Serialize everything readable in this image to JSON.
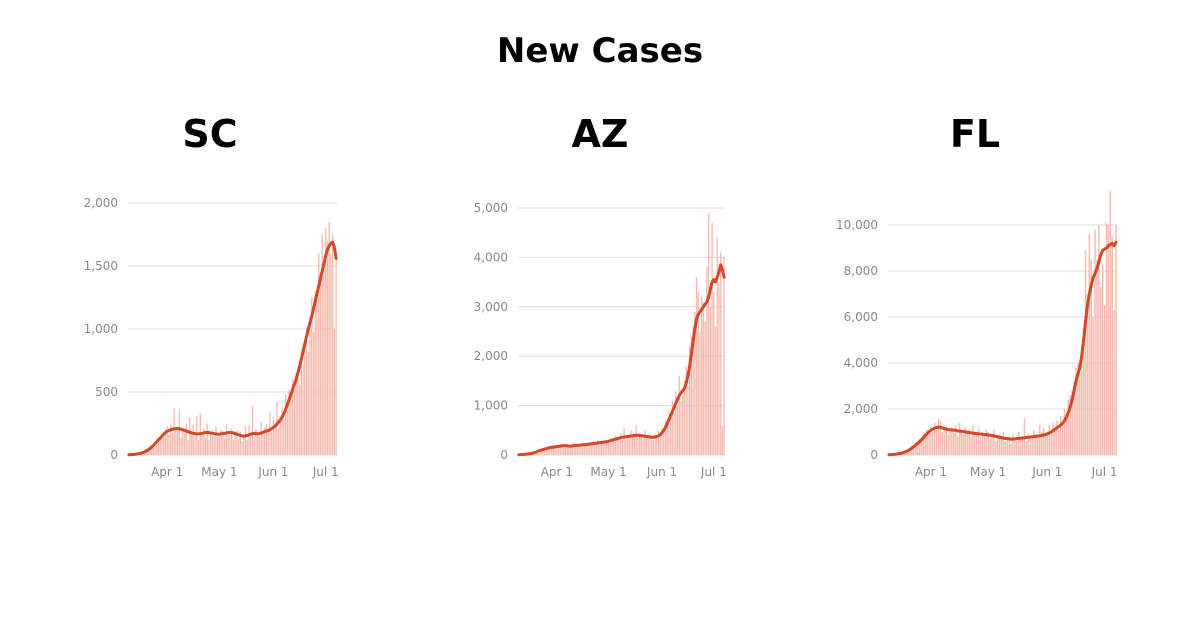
{
  "title": "New Cases",
  "chart_data": [
    {
      "type": "combo",
      "title": "SC",
      "categories": [
        null,
        null,
        null,
        null,
        null,
        null,
        null,
        null,
        null,
        null,
        null,
        null,
        null,
        null,
        null,
        null,
        null,
        null,
        null,
        null,
        null,
        null,
        "Apr 1",
        null,
        null,
        null,
        null,
        null,
        null,
        null,
        null,
        null,
        null,
        null,
        null,
        null,
        null,
        null,
        null,
        null,
        null,
        null,
        null,
        null,
        null,
        null,
        null,
        null,
        null,
        null,
        null,
        null,
        "May 1",
        null,
        null,
        null,
        null,
        null,
        null,
        null,
        null,
        null,
        null,
        null,
        null,
        null,
        null,
        null,
        null,
        null,
        null,
        null,
        null,
        null,
        null,
        null,
        null,
        null,
        null,
        null,
        null,
        null,
        null,
        "Jun 1",
        null,
        null,
        null,
        null,
        null,
        null,
        null,
        null,
        null,
        null,
        null,
        null,
        null,
        null,
        null,
        null,
        null,
        null,
        null,
        null,
        null,
        null,
        null,
        null,
        null,
        null,
        null,
        null,
        null,
        "Jul 1",
        null,
        null,
        null,
        null,
        null,
        null
      ],
      "values": [
        0,
        5,
        2,
        8,
        3,
        10,
        15,
        12,
        30,
        20,
        40,
        30,
        60,
        55,
        90,
        80,
        130,
        100,
        150,
        170,
        140,
        210,
        230,
        160,
        250,
        180,
        370,
        200,
        220,
        360,
        140,
        210,
        190,
        250,
        120,
        300,
        160,
        240,
        150,
        310,
        120,
        330,
        180,
        210,
        140,
        250,
        120,
        180,
        200,
        150,
        230,
        140,
        150,
        200,
        190,
        140,
        240,
        180,
        160,
        210,
        120,
        170,
        200,
        130,
        180,
        110,
        160,
        230,
        120,
        240,
        150,
        390,
        140,
        210,
        180,
        150,
        260,
        170,
        220,
        250,
        200,
        340,
        180,
        300,
        250,
        420,
        210,
        310,
        380,
        290,
        480,
        350,
        520,
        470,
        600,
        520,
        650,
        700,
        560,
        820,
        720,
        900,
        1000,
        820,
        1100,
        1250,
        980,
        1300,
        1250,
        1600,
        1450,
        1750,
        1500,
        1800,
        1700,
        1850,
        1600,
        1750,
        1000,
        1550
      ],
      "line_values": [
        2,
        3,
        4,
        5,
        7,
        9,
        12,
        15,
        20,
        25,
        32,
        40,
        50,
        62,
        75,
        90,
        105,
        120,
        135,
        150,
        165,
        178,
        188,
        195,
        200,
        205,
        208,
        210,
        210,
        208,
        205,
        200,
        195,
        190,
        185,
        180,
        175,
        172,
        170,
        168,
        168,
        170,
        172,
        175,
        178,
        180,
        178,
        175,
        172,
        170,
        168,
        165,
        165,
        168,
        170,
        172,
        175,
        178,
        180,
        178,
        175,
        170,
        165,
        160,
        155,
        152,
        150,
        152,
        155,
        160,
        165,
        170,
        172,
        170,
        168,
        170,
        175,
        180,
        185,
        190,
        195,
        200,
        210,
        220,
        230,
        245,
        260,
        280,
        300,
        330,
        360,
        400,
        440,
        480,
        520,
        560,
        600,
        650,
        700,
        760,
        820,
        880,
        940,
        1000,
        1050,
        1100,
        1160,
        1220,
        1280,
        1340,
        1400,
        1460,
        1520,
        1580,
        1630,
        1660,
        1680,
        1690,
        1650,
        1560
      ],
      "bar_color": "#f5bdb2",
      "line_color": "#d6472a",
      "ylim": [
        0,
        2000
      ],
      "yticks": [
        0,
        500,
        {
          "value": 1000,
          "label": "1,000"
        },
        {
          "value": 1500,
          "label": "1,500"
        },
        {
          "value": 2000,
          "label": "2,000"
        }
      ],
      "grid": true
    },
    {
      "type": "combo",
      "title": "AZ",
      "categories": [
        null,
        null,
        null,
        null,
        null,
        null,
        null,
        null,
        null,
        null,
        null,
        null,
        null,
        null,
        null,
        null,
        null,
        null,
        null,
        null,
        null,
        null,
        "Apr 1",
        null,
        null,
        null,
        null,
        null,
        null,
        null,
        null,
        null,
        null,
        null,
        null,
        null,
        null,
        null,
        null,
        null,
        null,
        null,
        null,
        null,
        null,
        null,
        null,
        null,
        null,
        null,
        null,
        null,
        "May 1",
        null,
        null,
        null,
        null,
        null,
        null,
        null,
        null,
        null,
        null,
        null,
        null,
        null,
        null,
        null,
        null,
        null,
        null,
        null,
        null,
        null,
        null,
        null,
        null,
        null,
        null,
        null,
        null,
        null,
        null,
        "Jun 1",
        null,
        null,
        null,
        null,
        null,
        null,
        null,
        null,
        null,
        null,
        null,
        null,
        null,
        null,
        null,
        null,
        null,
        null,
        null,
        null,
        null,
        null,
        null,
        null,
        null,
        null,
        null,
        null,
        null,
        "Jul 1",
        null,
        null,
        null,
        null,
        null,
        null
      ],
      "values": [
        0,
        10,
        5,
        15,
        20,
        25,
        20,
        40,
        50,
        60,
        70,
        60,
        110,
        90,
        130,
        100,
        150,
        120,
        180,
        140,
        190,
        160,
        200,
        150,
        230,
        160,
        210,
        180,
        230,
        150,
        200,
        170,
        240,
        180,
        210,
        230,
        170,
        250,
        200,
        240,
        190,
        260,
        210,
        280,
        220,
        250,
        300,
        230,
        290,
        240,
        310,
        260,
        300,
        250,
        350,
        280,
        400,
        300,
        350,
        450,
        300,
        550,
        380,
        400,
        350,
        500,
        380,
        420,
        600,
        350,
        450,
        400,
        330,
        500,
        380,
        340,
        420,
        350,
        300,
        420,
        380,
        500,
        450,
        550,
        450,
        700,
        600,
        900,
        750,
        1100,
        850,
        1300,
        1000,
        1600,
        1100,
        1200,
        1500,
        1800,
        1400,
        2200,
        2400,
        2600,
        2900,
        3600,
        3300,
        2500,
        3200,
        3100,
        2700,
        3800,
        4900,
        3000,
        4700,
        3300,
        2600,
        4400,
        3500,
        4100,
        600,
        4000
      ],
      "line_values": [
        5,
        8,
        10,
        12,
        15,
        20,
        25,
        30,
        40,
        50,
        60,
        75,
        90,
        100,
        110,
        120,
        130,
        140,
        150,
        155,
        160,
        165,
        170,
        175,
        180,
        185,
        190,
        190,
        185,
        180,
        180,
        185,
        190,
        195,
        195,
        200,
        200,
        205,
        210,
        210,
        215,
        220,
        225,
        230,
        235,
        240,
        245,
        250,
        255,
        260,
        265,
        270,
        280,
        290,
        300,
        310,
        320,
        330,
        340,
        350,
        360,
        365,
        370,
        375,
        380,
        385,
        390,
        395,
        400,
        400,
        395,
        390,
        385,
        380,
        375,
        370,
        365,
        360,
        360,
        365,
        375,
        390,
        410,
        450,
        500,
        560,
        640,
        720,
        800,
        880,
        960,
        1050,
        1130,
        1200,
        1260,
        1300,
        1350,
        1450,
        1600,
        1800,
        2050,
        2300,
        2550,
        2750,
        2850,
        2900,
        2950,
        3000,
        3050,
        3100,
        3200,
        3350,
        3500,
        3550,
        3500,
        3600,
        3700,
        3850,
        3750,
        3600
      ],
      "bar_color": "#f5bdb2",
      "line_color": "#d6472a",
      "ylim": [
        0,
        5000
      ],
      "yticks": [
        0,
        {
          "value": 1000,
          "label": "1,000"
        },
        {
          "value": 2000,
          "label": "2,000"
        },
        {
          "value": 3000,
          "label": "3,000"
        },
        {
          "value": 4000,
          "label": "4,000"
        },
        {
          "value": 5000,
          "label": "5,000"
        }
      ],
      "grid": true
    },
    {
      "type": "combo",
      "title": "FL",
      "categories": [
        null,
        null,
        null,
        null,
        null,
        null,
        null,
        null,
        null,
        null,
        null,
        null,
        null,
        null,
        null,
        null,
        null,
        null,
        null,
        null,
        null,
        null,
        "Apr 1",
        null,
        null,
        null,
        null,
        null,
        null,
        null,
        null,
        null,
        null,
        null,
        null,
        null,
        null,
        null,
        null,
        null,
        null,
        null,
        null,
        null,
        null,
        null,
        null,
        null,
        null,
        null,
        null,
        null,
        "May 1",
        null,
        null,
        null,
        null,
        null,
        null,
        null,
        null,
        null,
        null,
        null,
        null,
        null,
        null,
        null,
        null,
        null,
        null,
        null,
        null,
        null,
        null,
        null,
        null,
        null,
        null,
        null,
        null,
        null,
        null,
        "Jun 1",
        null,
        null,
        null,
        null,
        null,
        null,
        null,
        null,
        null,
        null,
        null,
        null,
        null,
        null,
        null,
        null,
        null,
        null,
        null,
        null,
        null,
        null,
        null,
        null,
        null,
        null,
        null,
        null,
        null,
        "Jul 1",
        null,
        null,
        null,
        null,
        null,
        null
      ],
      "values": [
        0,
        20,
        10,
        40,
        50,
        70,
        60,
        130,
        100,
        200,
        250,
        200,
        400,
        350,
        550,
        450,
        700,
        600,
        900,
        800,
        1100,
        950,
        1200,
        1000,
        1400,
        1100,
        1600,
        1500,
        1000,
        1200,
        1300,
        900,
        1100,
        1200,
        1000,
        1300,
        800,
        1400,
        1100,
        900,
        1200,
        1000,
        1100,
        800,
        1300,
        900,
        1000,
        1200,
        800,
        1000,
        900,
        1100,
        1000,
        700,
        900,
        1100,
        600,
        800,
        900,
        700,
        1000,
        600,
        700,
        800,
        500,
        900,
        700,
        600,
        1000,
        800,
        700,
        1600,
        600,
        900,
        800,
        700,
        1100,
        900,
        800,
        1300,
        1000,
        1200,
        900,
        1000,
        1300,
        900,
        1400,
        1200,
        1500,
        1100,
        1700,
        1300,
        2000,
        1800,
        2400,
        2600,
        2800,
        3200,
        3800,
        4000,
        3500,
        4500,
        5500,
        8900,
        7000,
        9600,
        8500,
        6000,
        9800,
        8500,
        10000,
        7300,
        8300,
        6500,
        10100,
        10000,
        11500,
        9500,
        6300,
        10000
      ],
      "line_values": [
        10,
        15,
        20,
        30,
        40,
        55,
        70,
        90,
        120,
        150,
        190,
        240,
        300,
        360,
        430,
        500,
        580,
        660,
        750,
        840,
        930,
        1010,
        1080,
        1130,
        1170,
        1200,
        1210,
        1200,
        1180,
        1150,
        1130,
        1110,
        1100,
        1090,
        1080,
        1070,
        1050,
        1040,
        1030,
        1020,
        1000,
        990,
        980,
        960,
        950,
        940,
        930,
        920,
        910,
        900,
        890,
        880,
        870,
        860,
        850,
        830,
        810,
        790,
        770,
        750,
        730,
        720,
        710,
        700,
        690,
        690,
        700,
        710,
        720,
        730,
        740,
        750,
        760,
        770,
        780,
        790,
        800,
        810,
        820,
        830,
        850,
        870,
        890,
        920,
        960,
        1000,
        1060,
        1120,
        1180,
        1240,
        1300,
        1380,
        1500,
        1650,
        1850,
        2100,
        2400,
        2800,
        3200,
        3500,
        3800,
        4300,
        5000,
        5800,
        6500,
        7000,
        7400,
        7700,
        7900,
        8100,
        8400,
        8700,
        8900,
        8950,
        9000,
        9100,
        9150,
        9200,
        9100,
        9250
      ],
      "bar_color": "#f5bdb2",
      "line_color": "#d6472a",
      "ylim": [
        0,
        12000
      ],
      "yticks": [
        0,
        {
          "value": 2000,
          "label": "2,000"
        },
        {
          "value": 4000,
          "label": "4,000"
        },
        {
          "value": 6000,
          "label": "6,000"
        },
        {
          "value": 8000,
          "label": "8,000"
        },
        {
          "value": 10000,
          "label": "10,000"
        }
      ],
      "grid": true
    }
  ]
}
